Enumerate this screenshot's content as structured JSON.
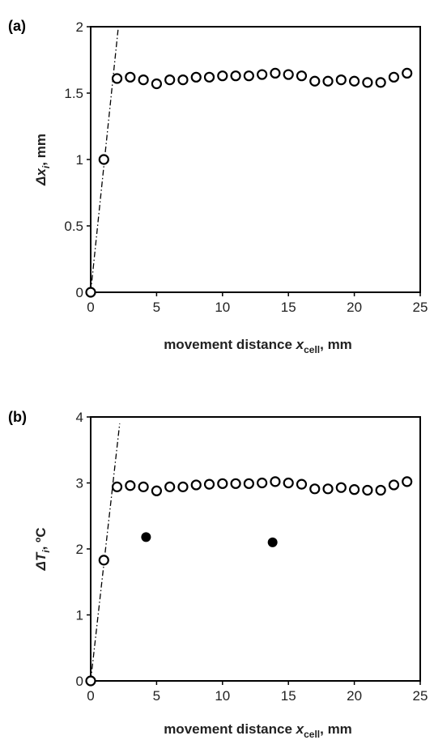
{
  "chart_data": [
    {
      "panel": "(a)",
      "type": "scatter",
      "xlabel": {
        "main": "movement distance ",
        "var": "x",
        "sub": "cell",
        "unit": ", mm"
      },
      "ylabel": {
        "delta": "Δ",
        "var": "x",
        "sub": "i",
        "unit": ", mm"
      },
      "xlim": [
        0,
        25
      ],
      "ylim": [
        0,
        2
      ],
      "xticks": [
        "0",
        "5",
        "10",
        "15",
        "20",
        "25"
      ],
      "yticks": [
        "0",
        "0.5",
        "1",
        "1.5",
        "2"
      ],
      "grid": false,
      "series": [
        {
          "marker": "open-circle",
          "x": [
            0,
            1,
            2,
            3,
            4,
            5,
            6,
            7,
            8,
            9,
            10,
            11,
            12,
            13,
            14,
            15,
            16,
            17,
            18,
            19,
            20,
            21,
            22,
            23,
            24
          ],
          "y": [
            0,
            1.0,
            1.61,
            1.62,
            1.6,
            1.57,
            1.6,
            1.6,
            1.62,
            1.62,
            1.63,
            1.63,
            1.63,
            1.64,
            1.65,
            1.64,
            1.63,
            1.59,
            1.59,
            1.6,
            1.59,
            1.58,
            1.58,
            1.62,
            1.65
          ]
        }
      ],
      "line": {
        "style": "dash-dot",
        "x": [
          0,
          2.1
        ],
        "y": [
          0,
          2.0
        ]
      }
    },
    {
      "panel": "(b)",
      "type": "scatter",
      "xlabel": {
        "main": "movement distance ",
        "var": "x",
        "sub": "cell",
        "unit": ", mm"
      },
      "ylabel": {
        "delta": "Δ",
        "var": "T",
        "sub": "i",
        "unit": ", ºC"
      },
      "xlim": [
        0,
        25
      ],
      "ylim": [
        0,
        4
      ],
      "xticks": [
        "0",
        "5",
        "10",
        "15",
        "20",
        "25"
      ],
      "yticks": [
        "0",
        "1",
        "2",
        "3",
        "4"
      ],
      "grid": false,
      "series": [
        {
          "marker": "open-circle",
          "x": [
            0,
            1,
            2,
            3,
            4,
            5,
            6,
            7,
            8,
            9,
            10,
            11,
            12,
            13,
            14,
            15,
            16,
            17,
            18,
            19,
            20,
            21,
            22,
            23,
            24
          ],
          "y": [
            0,
            1.83,
            2.94,
            2.96,
            2.94,
            2.88,
            2.94,
            2.94,
            2.97,
            2.98,
            2.99,
            2.99,
            2.99,
            3.0,
            3.02,
            3.0,
            2.98,
            2.91,
            2.91,
            2.93,
            2.9,
            2.89,
            2.89,
            2.97,
            3.02
          ]
        },
        {
          "marker": "filled-circle",
          "x": [
            4.2,
            13.8
          ],
          "y": [
            2.18,
            2.1
          ]
        }
      ],
      "line": {
        "style": "dash-dot",
        "x": [
          0,
          2.2
        ],
        "y": [
          0,
          3.9
        ]
      }
    }
  ]
}
